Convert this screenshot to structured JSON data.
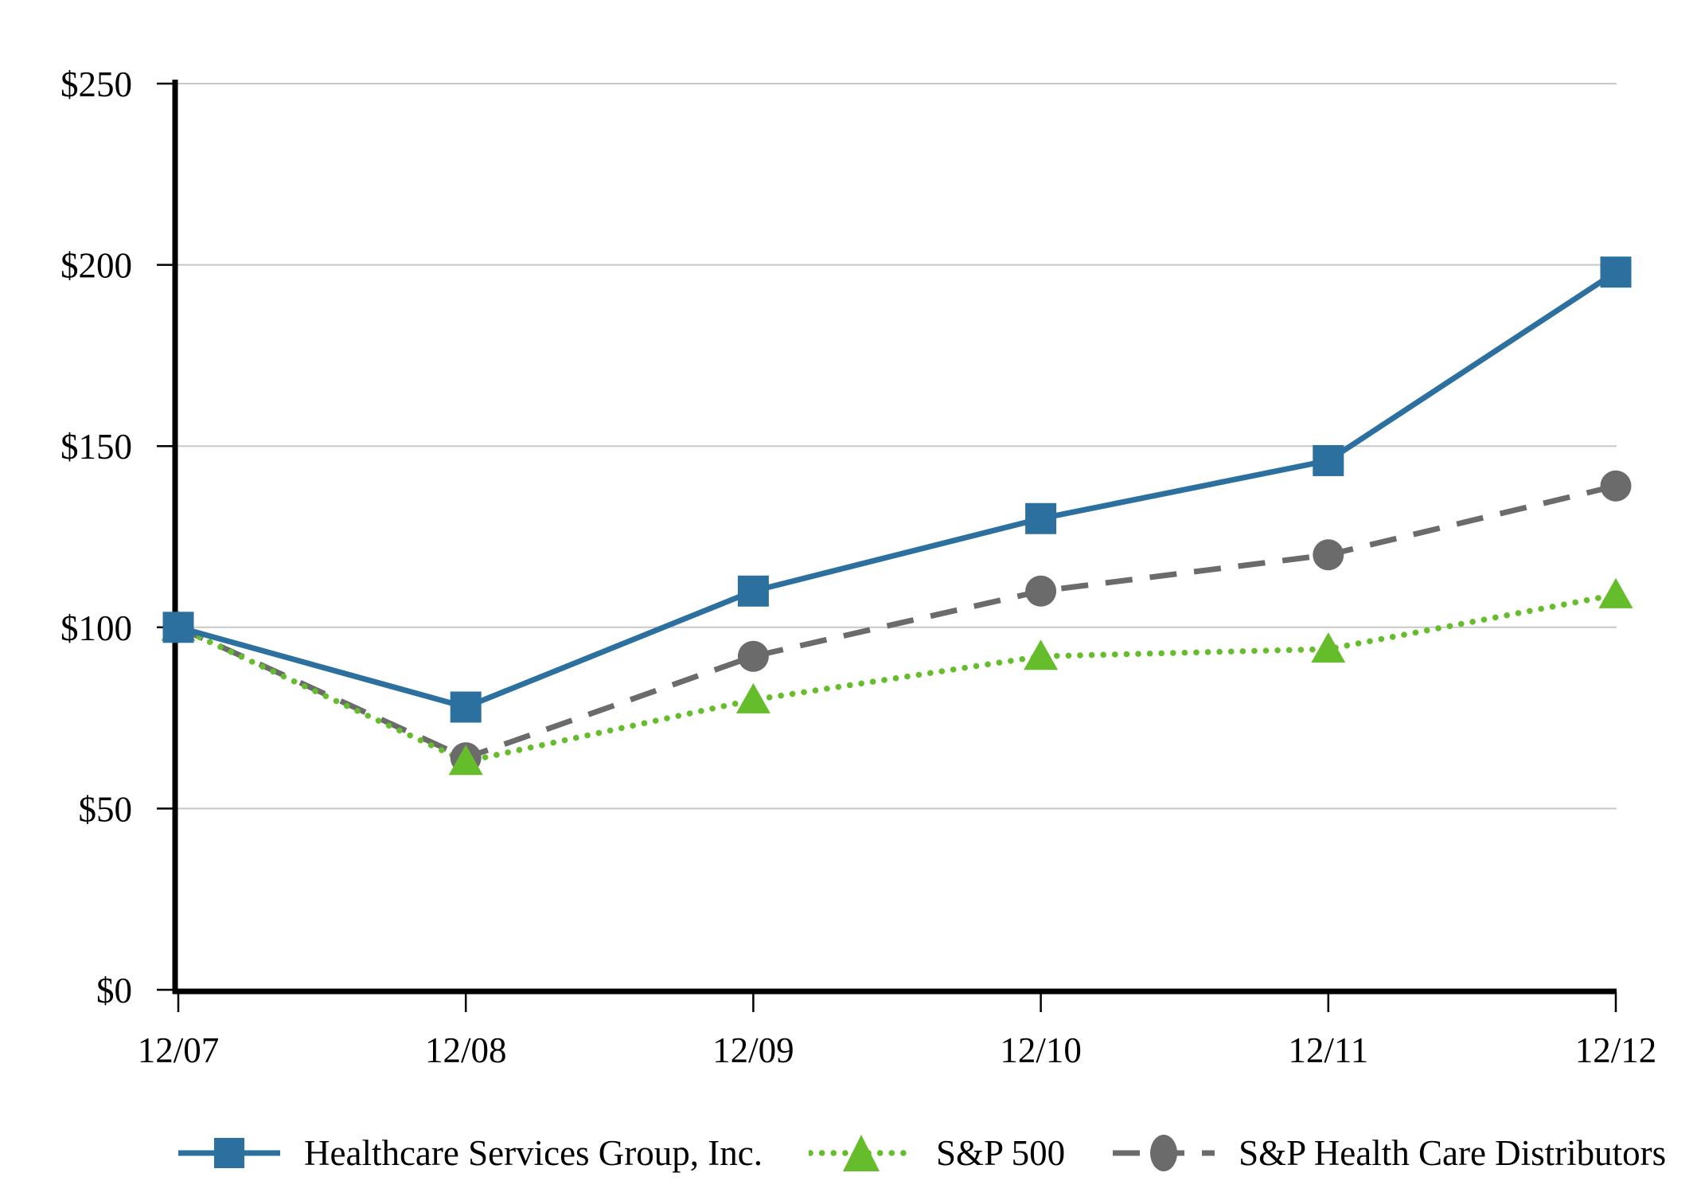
{
  "chart_data": {
    "type": "line",
    "title": "",
    "categories": [
      "12/07",
      "12/08",
      "12/09",
      "12/10",
      "12/11",
      "12/12"
    ],
    "series": [
      {
        "name": "Healthcare Services Group, Inc.",
        "values": [
          100,
          78,
          110,
          130,
          146,
          198
        ],
        "color": "#2c70a0",
        "line_style": "solid",
        "marker": "square"
      },
      {
        "name": "S&P 500",
        "values": [
          100,
          63,
          80,
          92,
          94,
          109
        ],
        "color": "#66bd2b",
        "line_style": "dotted",
        "marker": "triangle"
      },
      {
        "name": "S&P Health Care Distributors",
        "values": [
          100,
          64,
          92,
          110,
          120,
          139
        ],
        "color": "#6b6b6b",
        "line_style": "dashed",
        "marker": "circle"
      }
    ],
    "xlabel": "",
    "ylabel": "",
    "ylim": [
      0,
      250
    ],
    "yticks": [
      0,
      50,
      100,
      150,
      200,
      250
    ],
    "ytick_labels": [
      "$0",
      "$50",
      "$100",
      "$150",
      "$200",
      "$250"
    ],
    "grid": "horizontal",
    "legend_position": "bottom",
    "colors": {
      "grid": "#c8c8c8",
      "axis": "#000000",
      "text": "#000000",
      "background": "#ffffff"
    }
  }
}
